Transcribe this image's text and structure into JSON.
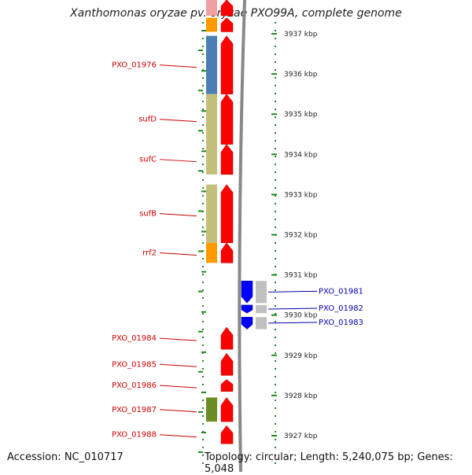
{
  "title": "Xanthomonas oryzae pv. oryzae PXO99A, complete genome",
  "footer": {
    "accession": "Accession: NC_010717",
    "summary": "Topology: circular; Length: 5,240,075 bp; Genes: 5,048"
  },
  "colors": {
    "forward_gene": "#ff0000",
    "reverse_gene": "#0000ff",
    "label_forward": "#cc0000",
    "label_reverse": "#0000aa",
    "ticks": "#228822",
    "backbone": "#888888"
  },
  "scale": {
    "unit": "kbp",
    "ticks": [
      {
        "kbp": 3937,
        "label": "3937 kbp"
      },
      {
        "kbp": 3936,
        "label": "3936 kbp"
      },
      {
        "kbp": 3935,
        "label": "3935 kbp"
      },
      {
        "kbp": 3934,
        "label": "3934 kbp"
      },
      {
        "kbp": 3933,
        "label": "3933 kbp"
      },
      {
        "kbp": 3932,
        "label": "3932 kbp"
      },
      {
        "kbp": 3931,
        "label": "3931 kbp"
      },
      {
        "kbp": 3930,
        "label": "3930 kbp"
      },
      {
        "kbp": 3929,
        "label": "3929 kbp"
      },
      {
        "kbp": 3928,
        "label": "3928 kbp"
      },
      {
        "kbp": 3927,
        "label": "3927 kbp"
      }
    ]
  },
  "forward_genes": [
    {
      "name": "",
      "start": 3937.85,
      "end": 3937.45,
      "cog": "#f0a0a0"
    },
    {
      "name": "",
      "start": 3937.4,
      "end": 3937.05,
      "cog": "#ff9900"
    },
    {
      "name": "PXO_01976",
      "start": 3936.95,
      "end": 3935.5,
      "cog": "#4a7eb5"
    },
    {
      "name": "sufD",
      "start": 3935.5,
      "end": 3934.25,
      "cog": "#c4bf7a"
    },
    {
      "name": "sufC",
      "start": 3934.25,
      "end": 3933.5,
      "cog": "#c4bf7a"
    },
    {
      "name": "sufB",
      "start": 3933.25,
      "end": 3931.8,
      "cog": "#c4bf7a"
    },
    {
      "name": "rrf2",
      "start": 3931.8,
      "end": 3931.3,
      "cog": "#ff9900"
    },
    {
      "name": "PXO_01984",
      "start": 3929.7,
      "end": 3929.15,
      "cog": ""
    },
    {
      "name": "PXO_01985",
      "start": 3929.05,
      "end": 3928.5,
      "cog": ""
    },
    {
      "name": "PXO_01986",
      "start": 3928.4,
      "end": 3928.1,
      "cog": ""
    },
    {
      "name": "PXO_01987",
      "start": 3927.95,
      "end": 3927.35,
      "cog": "#6b8e23"
    },
    {
      "name": "PXO_01988",
      "start": 3927.25,
      "end": 3926.8,
      "cog": ""
    }
  ],
  "reverse_genes": [
    {
      "name": "PXO_01981",
      "start": 3930.3,
      "end": 3930.85,
      "cog": "#c0c0c0"
    },
    {
      "name": "PXO_01982",
      "start": 3930.05,
      "end": 3930.25,
      "cog": "#c0c0c0"
    },
    {
      "name": "PXO_01983",
      "start": 3929.65,
      "end": 3929.95,
      "cog": "#c0c0c0"
    }
  ]
}
